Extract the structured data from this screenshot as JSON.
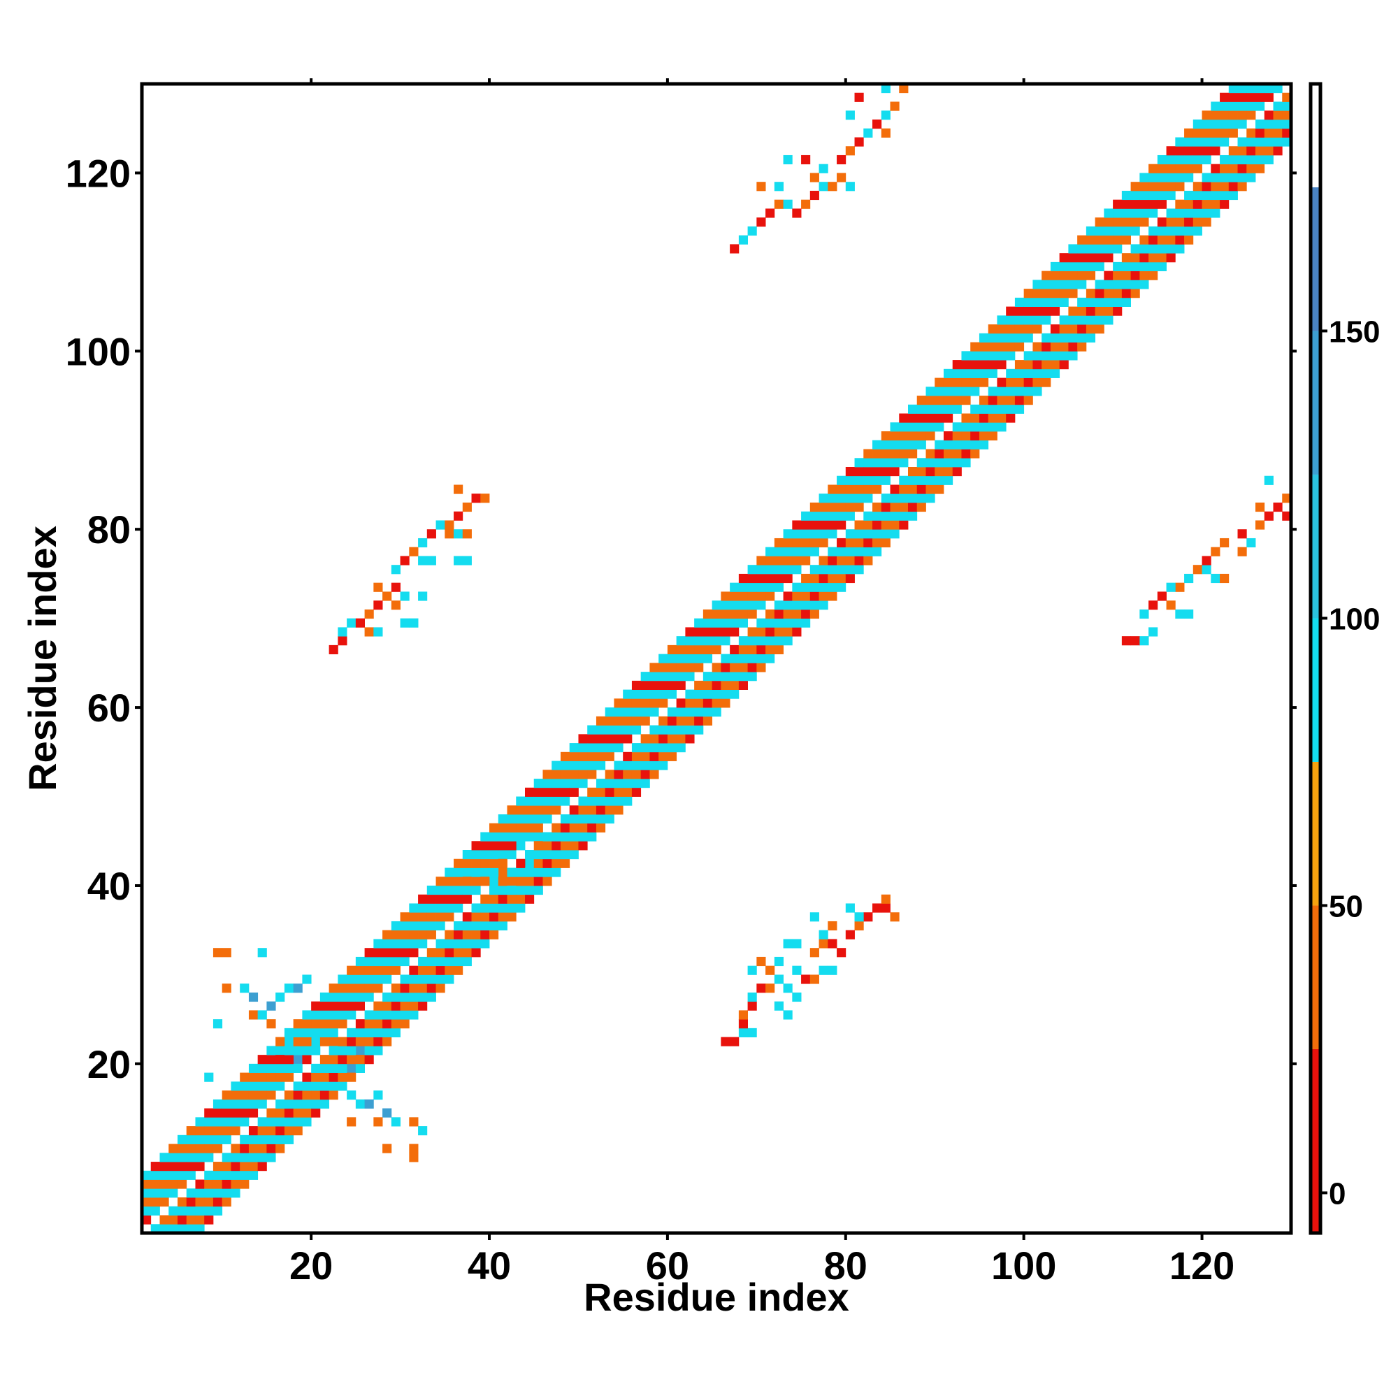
{
  "chart_data": {
    "type": "heatmap",
    "title": "",
    "xlabel": "Residue index",
    "ylabel": "Residue index",
    "xlim": [
      1,
      129
    ],
    "ylim": [
      1,
      129
    ],
    "xticks": [
      20,
      40,
      60,
      80,
      100,
      120
    ],
    "yticks": [
      20,
      40,
      60,
      80,
      100,
      120
    ],
    "x_tick_labels": [
      "20",
      "40",
      "60",
      "80",
      "100",
      "120"
    ],
    "y_tick_labels": [
      "20",
      "40",
      "60",
      "80",
      "100",
      "120"
    ],
    "colorbar": {
      "min": -7,
      "max": 193,
      "ticks": [
        0,
        50,
        100,
        150
      ],
      "tick_labels": [
        "0",
        "50",
        "100",
        "150"
      ],
      "bands": [
        {
          "from": -7,
          "to": 25,
          "color": "#e8120c"
        },
        {
          "from": 25,
          "to": 50,
          "color": "#f36d0a"
        },
        {
          "from": 50,
          "to": 75,
          "color": "#f6a20f"
        },
        {
          "from": 75,
          "to": 100,
          "color": "#14dcef"
        },
        {
          "from": 100,
          "to": 125,
          "color": "#2bc3df"
        },
        {
          "from": 125,
          "to": 150,
          "color": "#3d9fd1"
        },
        {
          "from": 150,
          "to": 175,
          "color": "#4a83c2"
        },
        {
          "from": 175,
          "to": 193,
          "color": "#ffffff"
        }
      ]
    },
    "grid": false,
    "diagonal_band": {
      "residue_range": [
        1,
        129
      ],
      "halfwidth": 6,
      "values_cycle": [
        40,
        85,
        20,
        90,
        45,
        95
      ]
    },
    "points": [
      [
        37,
        41,
        85
      ],
      [
        39,
        41,
        85
      ],
      [
        41,
        41,
        45
      ],
      [
        41,
        43,
        85
      ],
      [
        43,
        44,
        85
      ],
      [
        45,
        45,
        85
      ],
      [
        44,
        42,
        90
      ],
      [
        40,
        40,
        85
      ],
      [
        42,
        40,
        45
      ],
      [
        13,
        25,
        45
      ],
      [
        14,
        25,
        85
      ],
      [
        15,
        26,
        140
      ],
      [
        16,
        27,
        95
      ],
      [
        17,
        28,
        90
      ],
      [
        18,
        28,
        140
      ],
      [
        19,
        29,
        95
      ],
      [
        15,
        24,
        45
      ],
      [
        20,
        22,
        85
      ],
      [
        17,
        22,
        85
      ],
      [
        18,
        20,
        140
      ],
      [
        16,
        21,
        85
      ],
      [
        22,
        22,
        45
      ],
      [
        25,
        21,
        130
      ],
      [
        24,
        19,
        140
      ],
      [
        24,
        16,
        85
      ],
      [
        25,
        15,
        95
      ],
      [
        26,
        15,
        140
      ],
      [
        27,
        16,
        85
      ],
      [
        28,
        14,
        140
      ],
      [
        29,
        13,
        95
      ],
      [
        27,
        13,
        45
      ],
      [
        31,
        13,
        45
      ],
      [
        32,
        12,
        85
      ],
      [
        24,
        13,
        45
      ],
      [
        28,
        10,
        45
      ],
      [
        31,
        9,
        45
      ],
      [
        31,
        10,
        45
      ],
      [
        9,
        32,
        45
      ],
      [
        10,
        32,
        45
      ],
      [
        14,
        32,
        90
      ],
      [
        10,
        28,
        45
      ],
      [
        12,
        28,
        85
      ],
      [
        13,
        27,
        140
      ],
      [
        9,
        24,
        85
      ],
      [
        8,
        18,
        85
      ],
      [
        22,
        66,
        15
      ],
      [
        23,
        67,
        15
      ],
      [
        23,
        68,
        85
      ],
      [
        24,
        69,
        85
      ],
      [
        25,
        69,
        15
      ],
      [
        26,
        68,
        45
      ],
      [
        27,
        68,
        90
      ],
      [
        26,
        70,
        45
      ],
      [
        27,
        71,
        15
      ],
      [
        28,
        72,
        45
      ],
      [
        29,
        73,
        15
      ],
      [
        30,
        72,
        85
      ],
      [
        27,
        73,
        45
      ],
      [
        30,
        69,
        85
      ],
      [
        31,
        69,
        85
      ],
      [
        29,
        71,
        45
      ],
      [
        29,
        75,
        85
      ],
      [
        30,
        76,
        15
      ],
      [
        31,
        77,
        45
      ],
      [
        32,
        78,
        85
      ],
      [
        33,
        79,
        15
      ],
      [
        34,
        80,
        85
      ],
      [
        35,
        80,
        45
      ],
      [
        36,
        81,
        15
      ],
      [
        37,
        82,
        45
      ],
      [
        38,
        83,
        15
      ],
      [
        39,
        83,
        45
      ],
      [
        36,
        84,
        45
      ],
      [
        35,
        79,
        45
      ],
      [
        36,
        79,
        85
      ],
      [
        37,
        79,
        45
      ],
      [
        32,
        76,
        85
      ],
      [
        33,
        76,
        85
      ],
      [
        36,
        76,
        85
      ],
      [
        37,
        76,
        85
      ],
      [
        32,
        72,
        85
      ],
      [
        66,
        22,
        15
      ],
      [
        67,
        22,
        15
      ],
      [
        68,
        23,
        85
      ],
      [
        69,
        23,
        85
      ],
      [
        68,
        24,
        15
      ],
      [
        68,
        25,
        45
      ],
      [
        69,
        26,
        15
      ],
      [
        69,
        27,
        85
      ],
      [
        70,
        28,
        15
      ],
      [
        71,
        28,
        45
      ],
      [
        72,
        29,
        90
      ],
      [
        73,
        28,
        85
      ],
      [
        74,
        27,
        85
      ],
      [
        72,
        26,
        85
      ],
      [
        73,
        25,
        85
      ],
      [
        71,
        30,
        45
      ],
      [
        72,
        31,
        85
      ],
      [
        74,
        30,
        85
      ],
      [
        75,
        29,
        15
      ],
      [
        76,
        29,
        45
      ],
      [
        77,
        30,
        90
      ],
      [
        76,
        32,
        45
      ],
      [
        77,
        33,
        45
      ],
      [
        78,
        33,
        15
      ],
      [
        79,
        32,
        15
      ],
      [
        80,
        34,
        15
      ],
      [
        81,
        35,
        45
      ],
      [
        82,
        36,
        15
      ],
      [
        83,
        37,
        15
      ],
      [
        84,
        37,
        15
      ],
      [
        84,
        38,
        45
      ],
      [
        85,
        36,
        45
      ],
      [
        80,
        37,
        85
      ],
      [
        81,
        36,
        85
      ],
      [
        78,
        35,
        45
      ],
      [
        77,
        34,
        85
      ],
      [
        76,
        36,
        85
      ],
      [
        73,
        33,
        85
      ],
      [
        74,
        33,
        85
      ],
      [
        78,
        30,
        85
      ],
      [
        69,
        30,
        85
      ],
      [
        70,
        31,
        45
      ],
      [
        111,
        67,
        15
      ],
      [
        112,
        67,
        15
      ],
      [
        113,
        67,
        85
      ],
      [
        114,
        68,
        85
      ],
      [
        113,
        70,
        85
      ],
      [
        114,
        71,
        15
      ],
      [
        115,
        72,
        15
      ],
      [
        116,
        71,
        45
      ],
      [
        117,
        70,
        85
      ],
      [
        118,
        70,
        85
      ],
      [
        117,
        73,
        45
      ],
      [
        118,
        74,
        85
      ],
      [
        119,
        75,
        45
      ],
      [
        120,
        75,
        85
      ],
      [
        121,
        74,
        85
      ],
      [
        122,
        74,
        45
      ],
      [
        121,
        77,
        45
      ],
      [
        122,
        78,
        45
      ],
      [
        125,
        78,
        85
      ],
      [
        124,
        79,
        15
      ],
      [
        126,
        80,
        45
      ],
      [
        127,
        81,
        15
      ],
      [
        128,
        82,
        15
      ],
      [
        129,
        83,
        45
      ],
      [
        129,
        81,
        15
      ],
      [
        126,
        82,
        45
      ],
      [
        127,
        85,
        85
      ],
      [
        124,
        77,
        45
      ],
      [
        120,
        76,
        15
      ],
      [
        116,
        73,
        85
      ],
      [
        67,
        111,
        15
      ],
      [
        68,
        112,
        85
      ],
      [
        69,
        113,
        85
      ],
      [
        70,
        114,
        15
      ],
      [
        71,
        115,
        15
      ],
      [
        72,
        116,
        45
      ],
      [
        73,
        116,
        85
      ],
      [
        74,
        115,
        15
      ],
      [
        75,
        116,
        45
      ],
      [
        76,
        117,
        15
      ],
      [
        77,
        118,
        85
      ],
      [
        78,
        118,
        45
      ],
      [
        79,
        119,
        45
      ],
      [
        80,
        118,
        85
      ],
      [
        79,
        121,
        15
      ],
      [
        80,
        122,
        45
      ],
      [
        81,
        123,
        15
      ],
      [
        82,
        124,
        85
      ],
      [
        83,
        125,
        15
      ],
      [
        84,
        126,
        85
      ],
      [
        85,
        127,
        45
      ],
      [
        84,
        129,
        85
      ],
      [
        86,
        129,
        45
      ],
      [
        84,
        124,
        45
      ],
      [
        81,
        128,
        15
      ],
      [
        80,
        126,
        85
      ],
      [
        76,
        119,
        45
      ],
      [
        77,
        120,
        85
      ],
      [
        75,
        121,
        15
      ],
      [
        73,
        121,
        85
      ],
      [
        70,
        118,
        45
      ],
      [
        72,
        118,
        85
      ]
    ]
  }
}
